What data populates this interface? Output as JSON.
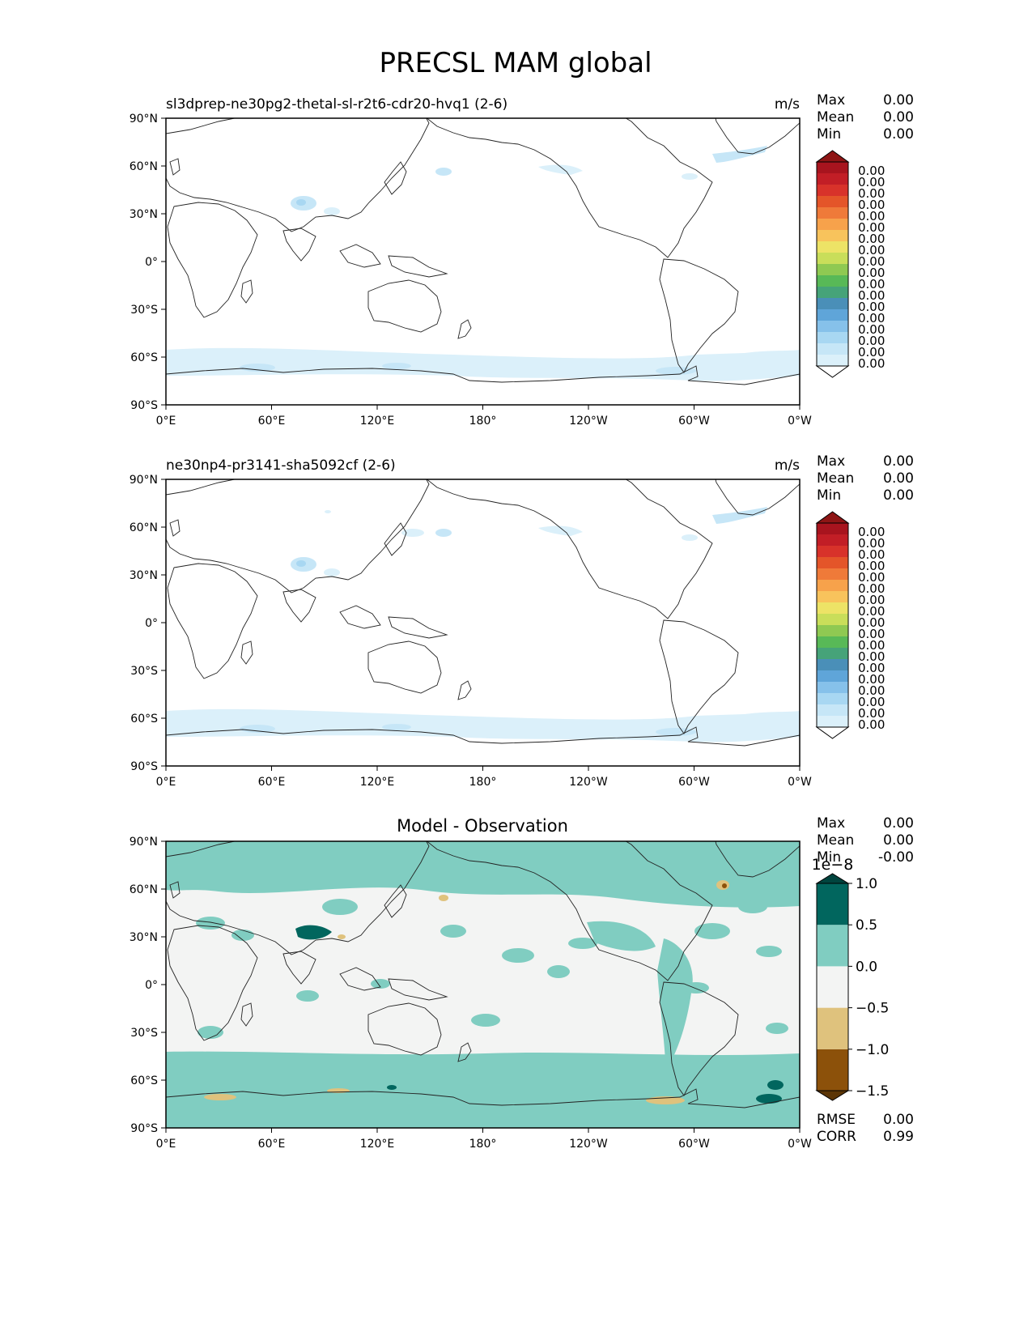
{
  "figure": {
    "title": "PRECSL MAM global"
  },
  "axes": {
    "lat_ticks": [
      "90°N",
      "60°N",
      "30°N",
      "0°",
      "30°S",
      "60°S",
      "90°S"
    ],
    "lon_ticks": [
      "0°E",
      "60°E",
      "120°E",
      "180°",
      "120°W",
      "60°W",
      "0°W"
    ]
  },
  "panels": [
    {
      "id": "test",
      "left_title": "sl3dprep-ne30pg2-thetal-sl-r2t6-cdr20-hvq1 (2-6)",
      "center_title": "",
      "units": "m/s",
      "stats": [
        {
          "label": "Max",
          "value": "0.00"
        },
        {
          "label": "Mean",
          "value": "0.00"
        },
        {
          "label": "Min",
          "value": "0.00"
        }
      ],
      "colorbar": {
        "type": "sequential",
        "colors": [
          "#ffffff",
          "#dbf0fa",
          "#c6e6f7",
          "#a8d7f2",
          "#86c1ea",
          "#5fa5d9",
          "#4a8fb8",
          "#46a379",
          "#58b957",
          "#8fc952",
          "#c9de5a",
          "#ede366",
          "#f8c35c",
          "#f7a24b",
          "#ef7a39",
          "#e45529",
          "#d8322a",
          "#c21e26",
          "#a8141e",
          "#8e1515"
        ],
        "tick_labels": [
          "0.00",
          "0.00",
          "0.00",
          "0.00",
          "0.00",
          "0.00",
          "0.00",
          "0.00",
          "0.00",
          "0.00",
          "0.00",
          "0.00",
          "0.00",
          "0.00",
          "0.00",
          "0.00",
          "0.00",
          "0.00"
        ]
      }
    },
    {
      "id": "ref",
      "left_title": "ne30np4-pr3141-sha5092cf (2-6)",
      "center_title": "",
      "units": "m/s",
      "stats": [
        {
          "label": "Max",
          "value": "0.00"
        },
        {
          "label": "Mean",
          "value": "0.00"
        },
        {
          "label": "Min",
          "value": "0.00"
        }
      ],
      "colorbar": {
        "type": "sequential",
        "colors": [
          "#ffffff",
          "#dbf0fa",
          "#c6e6f7",
          "#a8d7f2",
          "#86c1ea",
          "#5fa5d9",
          "#4a8fb8",
          "#46a379",
          "#58b957",
          "#8fc952",
          "#c9de5a",
          "#ede366",
          "#f8c35c",
          "#f7a24b",
          "#ef7a39",
          "#e45529",
          "#d8322a",
          "#c21e26",
          "#a8141e",
          "#8e1515"
        ],
        "tick_labels": [
          "0.00",
          "0.00",
          "0.00",
          "0.00",
          "0.00",
          "0.00",
          "0.00",
          "0.00",
          "0.00",
          "0.00",
          "0.00",
          "0.00",
          "0.00",
          "0.00",
          "0.00",
          "0.00",
          "0.00",
          "0.00"
        ]
      }
    },
    {
      "id": "diff",
      "left_title": "",
      "center_title": "Model - Observation",
      "units": "",
      "stats": [
        {
          "label": "Max",
          "value": "0.00"
        },
        {
          "label": "Mean",
          "value": "0.00"
        },
        {
          "label": "Min",
          "value": "-0.00"
        }
      ],
      "extra_stats": [
        {
          "label": "RMSE",
          "value": "0.00"
        },
        {
          "label": "CORR",
          "value": "0.99"
        }
      ],
      "colorbar": {
        "type": "diverging",
        "exponent": "1e−8",
        "colors": [
          "#5c3506",
          "#8c510a",
          "#dfc27d",
          "#f3f4f3",
          "#80cdc1",
          "#01665e",
          "#00443e"
        ],
        "tick_labels": [
          "1.0",
          "0.5",
          "0.0",
          "−0.5",
          "−1.0",
          "−1.5"
        ]
      }
    }
  ],
  "colors": {
    "precip_light": "#dbf0fa",
    "precip_mid": "#c6e6f7",
    "precip_dark": "#a8d7f2",
    "diff_ocean_bg": "#f3f4f3",
    "diff_positive": "#80cdc1",
    "diff_strong_positive": "#01665e",
    "diff_negative": "#dfc27d",
    "diff_strong_negative": "#8c510a"
  }
}
